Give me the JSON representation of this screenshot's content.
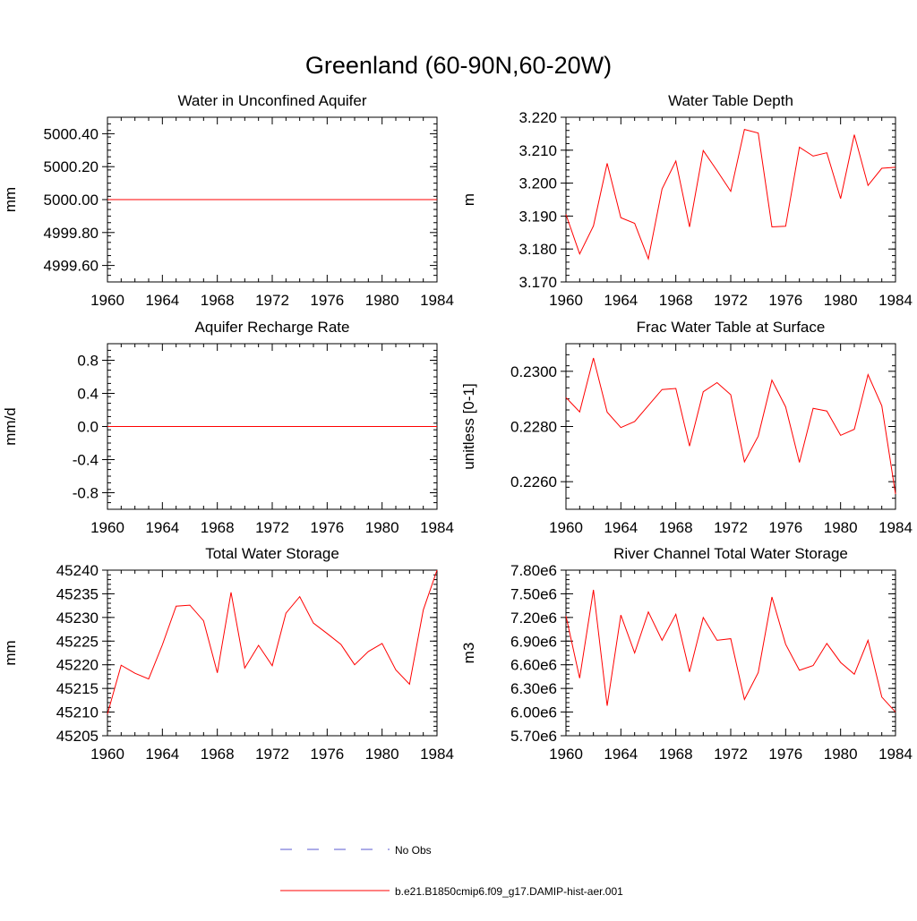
{
  "figure_title": "Greenland (60-90N,60-20W)",
  "legend": {
    "obs_label": "No Obs",
    "obs_color": "#5a5ad0",
    "model_label": "b.e21.B1850cmip6.f09_g17.DAMIP-hist-aer.001",
    "model_color": "#ff0000"
  },
  "chart_data": [
    {
      "type": "line",
      "title": "Water in Unconfined Aquifer",
      "ylabel": "mm",
      "xlim": [
        1960,
        1984
      ],
      "ylim": [
        4999.5,
        5000.5
      ],
      "xticks": [
        1960,
        1964,
        1968,
        1972,
        1976,
        1980,
        1984
      ],
      "yticks": [
        4999.6,
        4999.8,
        5000.0,
        5000.2,
        5000.4
      ],
      "ytick_labels": [
        "4999.60",
        "4999.80",
        "5000.00",
        "5000.20",
        "5000.40"
      ],
      "x": [
        1960,
        1984
      ],
      "series": [
        {
          "values": [
            5000.0,
            5000.0
          ]
        }
      ]
    },
    {
      "type": "line",
      "title": "Water Table Depth",
      "ylabel": "m",
      "xlim": [
        1960,
        1984
      ],
      "ylim": [
        3.17,
        3.22
      ],
      "xticks": [
        1960,
        1964,
        1968,
        1972,
        1976,
        1980,
        1984
      ],
      "yticks": [
        3.17,
        3.18,
        3.19,
        3.2,
        3.21,
        3.22
      ],
      "ytick_labels": [
        "3.170",
        "3.180",
        "3.190",
        "3.200",
        "3.210",
        "3.220"
      ],
      "x": [
        1960,
        1961,
        1962,
        1963,
        1964,
        1965,
        1966,
        1967,
        1968,
        1969,
        1970,
        1971,
        1972,
        1973,
        1974,
        1975,
        1976,
        1977,
        1978,
        1979,
        1980,
        1981,
        1982,
        1983,
        1984
      ],
      "series": [
        {
          "values": [
            3.1905,
            3.1785,
            3.187,
            3.206,
            3.1895,
            3.1878,
            3.177,
            3.1982,
            3.2067,
            3.1867,
            3.2099,
            3.2038,
            3.1975,
            3.2163,
            3.2152,
            3.1867,
            3.1869,
            3.2109,
            3.2082,
            3.2092,
            3.1953,
            3.2147,
            3.1993,
            3.2045,
            3.2048
          ]
        }
      ]
    },
    {
      "type": "line",
      "title": "Aquifer Recharge Rate",
      "ylabel": "mm/d",
      "xlim": [
        1960,
        1984
      ],
      "ylim": [
        -1.0,
        1.0
      ],
      "xticks": [
        1960,
        1964,
        1968,
        1972,
        1976,
        1980,
        1984
      ],
      "yticks": [
        -0.8,
        -0.4,
        0.0,
        0.4,
        0.8
      ],
      "ytick_labels": [
        "-0.8",
        "-0.4",
        "0.0",
        "0.4",
        "0.8"
      ],
      "x": [
        1960,
        1984
      ],
      "series": [
        {
          "values": [
            0.0,
            0.0
          ]
        }
      ]
    },
    {
      "type": "line",
      "title": "Frac Water Table at Surface",
      "ylabel": "unitless [0-1]",
      "xlim": [
        1960,
        1984
      ],
      "ylim": [
        0.225,
        0.231
      ],
      "xticks": [
        1960,
        1964,
        1968,
        1972,
        1976,
        1980,
        1984
      ],
      "yticks": [
        0.226,
        0.228,
        0.23
      ],
      "ytick_labels": [
        "0.2260",
        "0.2280",
        "0.2300"
      ],
      "x": [
        1960,
        1961,
        1962,
        1963,
        1964,
        1965,
        1966,
        1967,
        1968,
        1969,
        1970,
        1971,
        1972,
        1973,
        1974,
        1975,
        1976,
        1977,
        1978,
        1979,
        1980,
        1981,
        1982,
        1983,
        1984
      ],
      "series": [
        {
          "values": [
            0.22905,
            0.22853,
            0.23048,
            0.22852,
            0.22796,
            0.22818,
            0.22876,
            0.22934,
            0.22938,
            0.22729,
            0.22926,
            0.22959,
            0.22915,
            0.22672,
            0.22765,
            0.22968,
            0.22871,
            0.2267,
            0.22866,
            0.22856,
            0.22768,
            0.2279,
            0.22988,
            0.22875,
            0.22555
          ]
        }
      ]
    },
    {
      "type": "line",
      "title": "Total Water Storage",
      "ylabel": "mm",
      "xlim": [
        1960,
        1984
      ],
      "ylim": [
        45205,
        45240
      ],
      "xticks": [
        1960,
        1964,
        1968,
        1972,
        1976,
        1980,
        1984
      ],
      "yticks": [
        45205,
        45210,
        45215,
        45220,
        45225,
        45230,
        45235,
        45240
      ],
      "ytick_labels": [
        "45205",
        "45210",
        "45215",
        "45220",
        "45225",
        "45230",
        "45235",
        "45240"
      ],
      "x": [
        1960,
        1961,
        1962,
        1963,
        1964,
        1965,
        1966,
        1967,
        1968,
        1969,
        1970,
        1971,
        1972,
        1973,
        1974,
        1975,
        1976,
        1977,
        1978,
        1979,
        1980,
        1981,
        1982,
        1983,
        1984
      ],
      "series": [
        {
          "values": [
            45209.6,
            45219.9,
            45218.2,
            45217.0,
            45224.2,
            45232.4,
            45232.6,
            45229.3,
            45218.3,
            45235.3,
            45219.3,
            45224.1,
            45219.8,
            45230.9,
            45234.4,
            45228.8,
            45226.6,
            45224.3,
            45220.0,
            45222.8,
            45224.5,
            45218.9,
            45215.9,
            45231.6,
            45240.0
          ]
        }
      ]
    },
    {
      "type": "line",
      "title": "River Channel Total Water Storage",
      "ylabel": "m3",
      "xlim": [
        1960,
        1984
      ],
      "ylim": [
        5700000,
        7800000
      ],
      "xticks": [
        1960,
        1964,
        1968,
        1972,
        1976,
        1980,
        1984
      ],
      "yticks": [
        5700000,
        6000000,
        6300000,
        6600000,
        6900000,
        7200000,
        7500000,
        7800000
      ],
      "ytick_labels": [
        "5.70e6",
        "6.00e6",
        "6.30e6",
        "6.60e6",
        "6.90e6",
        "7.20e6",
        "7.50e6",
        "7.80e6"
      ],
      "x": [
        1960,
        1961,
        1962,
        1963,
        1964,
        1965,
        1966,
        1967,
        1968,
        1969,
        1970,
        1971,
        1972,
        1973,
        1974,
        1975,
        1976,
        1977,
        1978,
        1979,
        1980,
        1981,
        1982,
        1983,
        1984
      ],
      "series": [
        {
          "values": [
            7220000,
            6430000,
            7550000,
            6080000,
            7230000,
            6750000,
            7270000,
            6910000,
            7240000,
            6510000,
            7200000,
            6910000,
            6930000,
            6160000,
            6500000,
            7460000,
            6860000,
            6530000,
            6590000,
            6870000,
            6630000,
            6480000,
            6910000,
            6190000,
            6000000
          ]
        }
      ]
    }
  ]
}
